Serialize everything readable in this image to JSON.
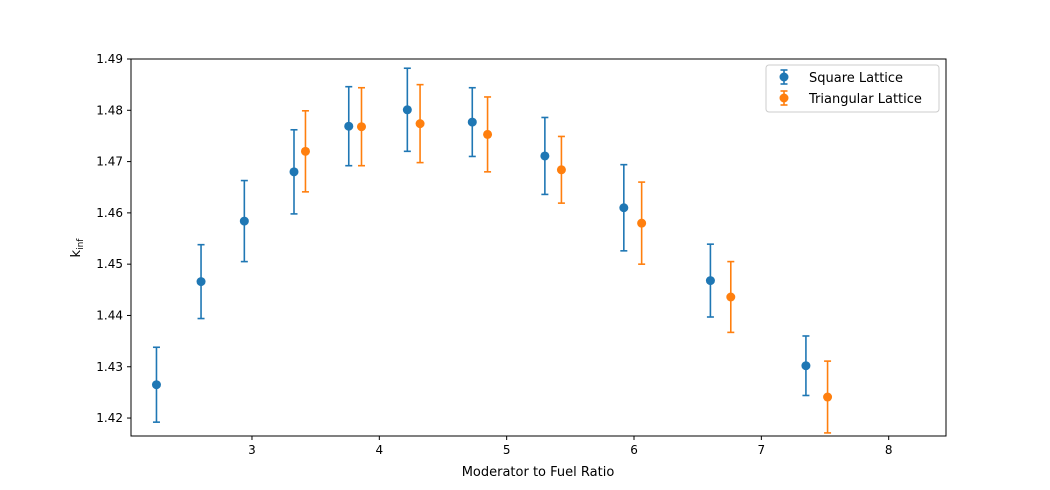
{
  "chart_data": {
    "type": "scatter",
    "xlabel": "Moderator to Fuel Ratio",
    "ylabel_main": "k",
    "ylabel_sub": "inf",
    "xlim": [
      2.05,
      8.45
    ],
    "ylim": [
      1.4165,
      1.49
    ],
    "xticks": [
      3,
      4,
      5,
      6,
      7,
      8
    ],
    "yticks": [
      1.42,
      1.43,
      1.44,
      1.45,
      1.46,
      1.47,
      1.48,
      1.49
    ],
    "xtick_labels": [
      "3",
      "4",
      "5",
      "6",
      "7",
      "8"
    ],
    "ytick_labels": [
      "1.42",
      "1.43",
      "1.44",
      "1.45",
      "1.46",
      "1.47",
      "1.48",
      "1.49"
    ],
    "legend_position": "top-right",
    "series": [
      {
        "name": "Square Lattice",
        "color": "#1f77b4",
        "points": [
          {
            "x": 2.25,
            "y": 1.4265,
            "err": 0.0073
          },
          {
            "x": 2.6,
            "y": 1.4466,
            "err": 0.0072
          },
          {
            "x": 2.94,
            "y": 1.4584,
            "err": 0.0079
          },
          {
            "x": 3.33,
            "y": 1.468,
            "err": 0.0082
          },
          {
            "x": 3.76,
            "y": 1.4769,
            "err": 0.0077
          },
          {
            "x": 4.22,
            "y": 1.4801,
            "err": 0.0081
          },
          {
            "x": 4.73,
            "y": 1.4777,
            "err": 0.0067
          },
          {
            "x": 5.3,
            "y": 1.4711,
            "err": 0.0075
          },
          {
            "x": 5.92,
            "y": 1.461,
            "err": 0.0084
          },
          {
            "x": 6.6,
            "y": 1.4468,
            "err": 0.0071
          },
          {
            "x": 7.35,
            "y": 1.4302,
            "err": 0.0058
          }
        ]
      },
      {
        "name": "Triangular Lattice",
        "color": "#ff7f0e",
        "points": [
          {
            "x": 3.42,
            "y": 1.472,
            "err": 0.0079
          },
          {
            "x": 3.86,
            "y": 1.4768,
            "err": 0.0076
          },
          {
            "x": 4.32,
            "y": 1.4774,
            "err": 0.0076
          },
          {
            "x": 4.85,
            "y": 1.4753,
            "err": 0.0073
          },
          {
            "x": 5.43,
            "y": 1.4684,
            "err": 0.0065
          },
          {
            "x": 6.06,
            "y": 1.458,
            "err": 0.008
          },
          {
            "x": 6.76,
            "y": 1.4436,
            "err": 0.0069
          },
          {
            "x": 7.52,
            "y": 1.4241,
            "err": 0.007
          }
        ]
      }
    ]
  }
}
